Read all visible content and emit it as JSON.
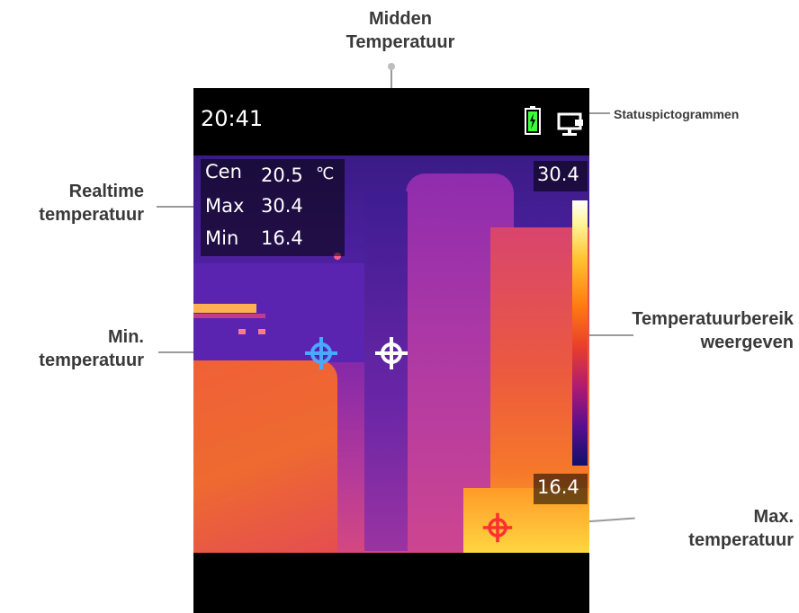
{
  "callouts": {
    "midden_line1": "Midden",
    "midden_line2": "Temperatuur",
    "status_icons": "Statuspictogrammen",
    "realtime_line1": "Realtime",
    "realtime_line2": "temperatuur",
    "min_line1": "Min.",
    "min_line2": "temperatuur",
    "range_line1": "Temperatuurbereik",
    "range_line2": "weergeven",
    "max_line1": "Max.",
    "max_line2": "temperatuur"
  },
  "device": {
    "time": "20:41",
    "icons": [
      "battery-charging-icon",
      "monitor-icon"
    ],
    "readouts": {
      "cen_label": "Cen",
      "cen_value": "20.5",
      "unit": "℃",
      "max_label": "Max",
      "max_value": "30.4",
      "min_label": "Min",
      "min_value": "16.4"
    },
    "scale_max": "30.4",
    "scale_min": "16.4"
  },
  "colors": {
    "battery": "#3cff3c",
    "min_marker": "#4aa8ff",
    "center_marker": "#ffffff",
    "max_marker": "#ff3030"
  }
}
